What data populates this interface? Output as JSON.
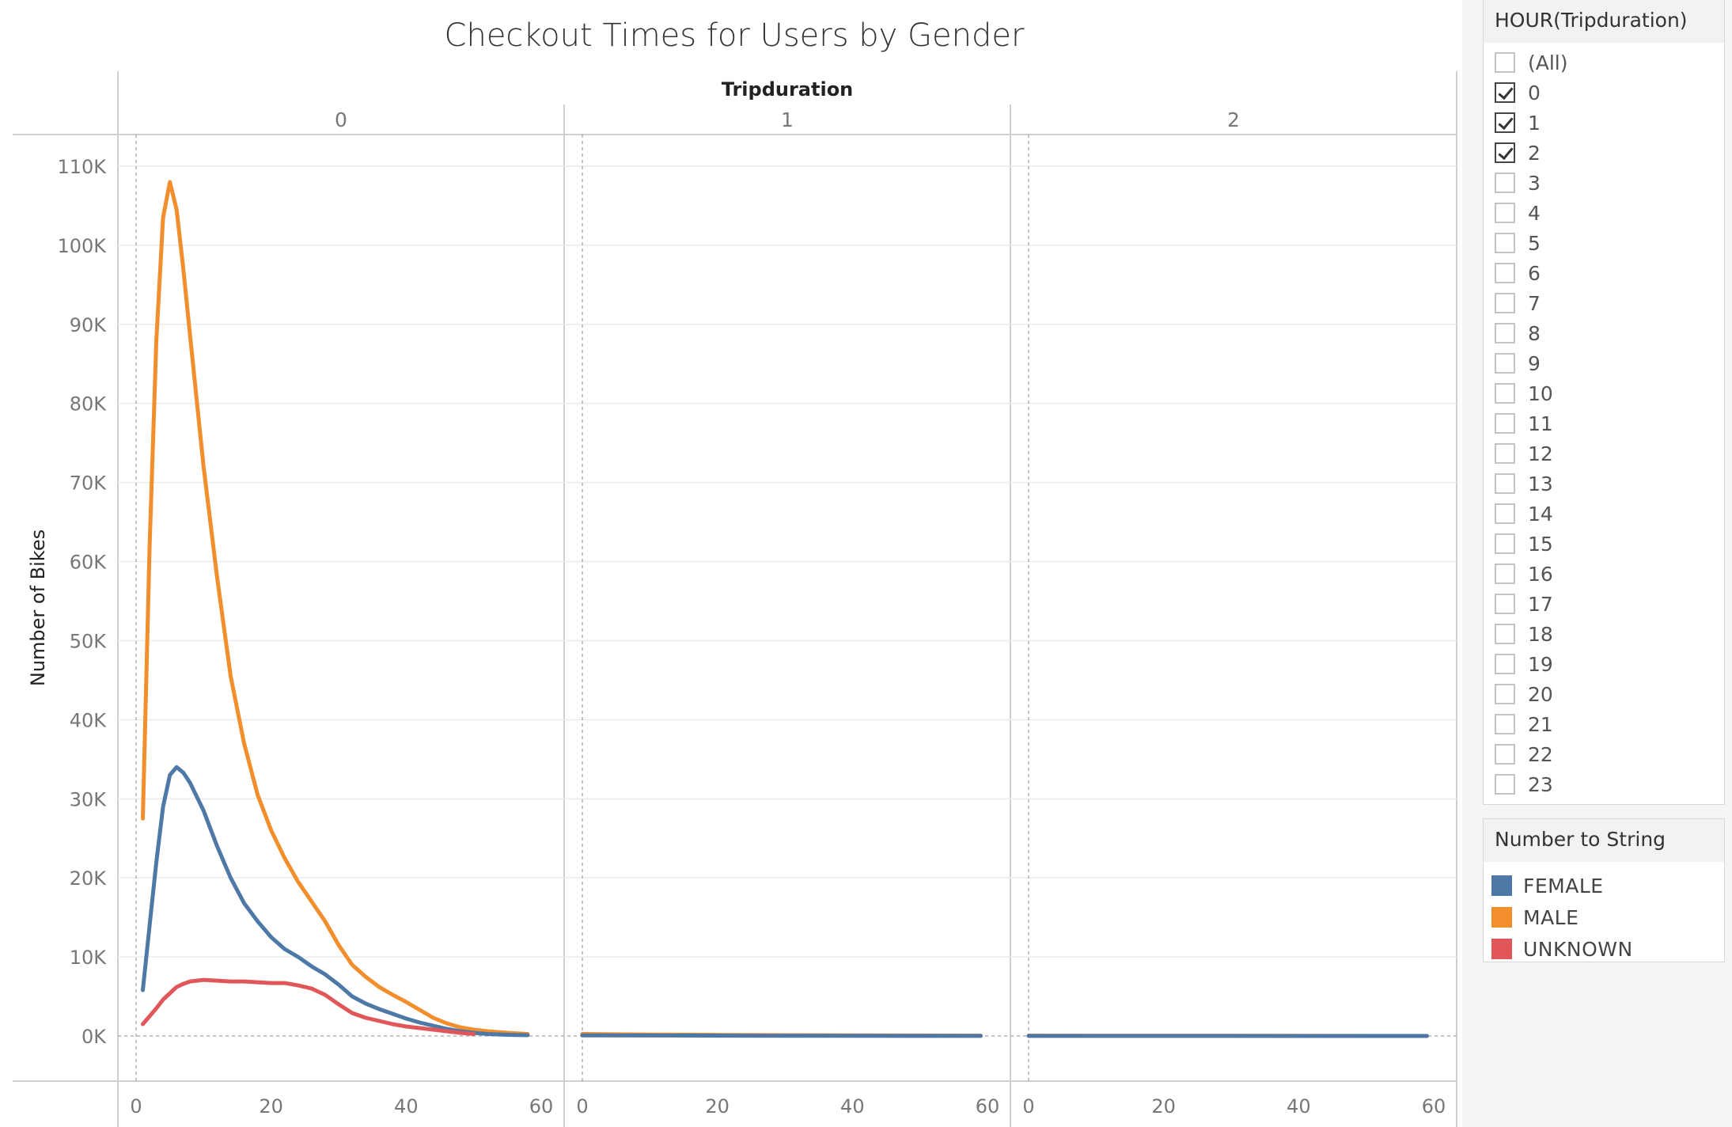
{
  "colors": {
    "female": "#4e79a7",
    "male": "#f28e2b",
    "unknown": "#e15759",
    "grid": "#ececec",
    "frame": "#cfcfcf"
  },
  "filter": {
    "title": "HOUR(Tripduration)",
    "items": [
      {
        "label": "(All)",
        "checked": false
      },
      {
        "label": "0",
        "checked": true
      },
      {
        "label": "1",
        "checked": true
      },
      {
        "label": "2",
        "checked": true
      },
      {
        "label": "3",
        "checked": false
      },
      {
        "label": "4",
        "checked": false
      },
      {
        "label": "5",
        "checked": false
      },
      {
        "label": "6",
        "checked": false
      },
      {
        "label": "7",
        "checked": false
      },
      {
        "label": "8",
        "checked": false
      },
      {
        "label": "9",
        "checked": false
      },
      {
        "label": "10",
        "checked": false
      },
      {
        "label": "11",
        "checked": false
      },
      {
        "label": "12",
        "checked": false
      },
      {
        "label": "13",
        "checked": false
      },
      {
        "label": "14",
        "checked": false
      },
      {
        "label": "15",
        "checked": false
      },
      {
        "label": "16",
        "checked": false
      },
      {
        "label": "17",
        "checked": false
      },
      {
        "label": "18",
        "checked": false
      },
      {
        "label": "19",
        "checked": false
      },
      {
        "label": "20",
        "checked": false
      },
      {
        "label": "21",
        "checked": false
      },
      {
        "label": "22",
        "checked": false
      },
      {
        "label": "23",
        "checked": false
      }
    ]
  },
  "legend": {
    "title": "Number to String",
    "items": [
      {
        "label": "FEMALE",
        "color": "#4e79a7"
      },
      {
        "label": "MALE",
        "color": "#f28e2b"
      },
      {
        "label": "UNKNOWN",
        "color": "#e15759"
      }
    ]
  },
  "chart_data": {
    "type": "line",
    "title": "Checkout Times for Users by Gender",
    "facet_label": "Tripduration",
    "facets": [
      "0",
      "1",
      "2"
    ],
    "ylabel": "Number of Bikes",
    "xlabel": "",
    "ylim": [
      0,
      112000
    ],
    "y_ticks": [
      0,
      10000,
      20000,
      30000,
      40000,
      50000,
      60000,
      70000,
      80000,
      90000,
      100000,
      110000
    ],
    "y_tick_labels": [
      "0K",
      "10K",
      "20K",
      "30K",
      "40K",
      "50K",
      "60K",
      "70K",
      "80K",
      "90K",
      "100K",
      "110K"
    ],
    "xlim": [
      -2,
      62
    ],
    "x_ticks": [
      0,
      20,
      40,
      60
    ],
    "x_tick_labels": [
      "0",
      "20",
      "40",
      "60"
    ],
    "grid": true,
    "legend_position": "right",
    "panels": [
      {
        "facet": "0",
        "series": [
          {
            "name": "MALE",
            "x": [
              1,
              2,
              3,
              4,
              5,
              6,
              7,
              8,
              10,
              12,
              14,
              16,
              18,
              20,
              22,
              24,
              26,
              28,
              30,
              32,
              34,
              36,
              38,
              40,
              42,
              44,
              46,
              48,
              50,
              52,
              55,
              58
            ],
            "y": [
              27500,
              62000,
              88000,
              103500,
              108000,
              104500,
              97000,
              88500,
              72000,
              58000,
              45500,
              37000,
              30500,
              26000,
              22500,
              19500,
              17000,
              14500,
              11500,
              9000,
              7500,
              6200,
              5200,
              4300,
              3300,
              2300,
              1600,
              1100,
              800,
              600,
              400,
              250
            ]
          },
          {
            "name": "FEMALE",
            "x": [
              1,
              2,
              3,
              4,
              5,
              6,
              7,
              8,
              10,
              12,
              14,
              16,
              18,
              20,
              22,
              24,
              26,
              28,
              30,
              32,
              34,
              36,
              38,
              40,
              42,
              44,
              46,
              48,
              50,
              52,
              55,
              58
            ],
            "y": [
              5800,
              14000,
              22000,
              29000,
              33000,
              34000,
              33300,
              32000,
              28500,
              24000,
              20000,
              16800,
              14500,
              12500,
              11000,
              10000,
              8800,
              7800,
              6500,
              5000,
              4100,
              3400,
              2800,
              2200,
              1700,
              1300,
              900,
              600,
              400,
              250,
              150,
              100
            ]
          },
          {
            "name": "UNKNOWN",
            "x": [
              1,
              2,
              3,
              4,
              5,
              6,
              7,
              8,
              10,
              12,
              14,
              16,
              18,
              20,
              22,
              24,
              26,
              28,
              30,
              32,
              34,
              36,
              38,
              40,
              42,
              44,
              46,
              48,
              50
            ],
            "y": [
              1500,
              2500,
              3500,
              4600,
              5400,
              6200,
              6600,
              6900,
              7100,
              7000,
              6900,
              6900,
              6800,
              6700,
              6700,
              6400,
              6000,
              5200,
              4000,
              2900,
              2300,
              1900,
              1500,
              1200,
              1000,
              800,
              600,
              400,
              250
            ]
          }
        ]
      },
      {
        "facet": "1",
        "series": [
          {
            "name": "MALE",
            "x": [
              0,
              10,
              20,
              30,
              40,
              50,
              59
            ],
            "y": [
              250,
              180,
              140,
              100,
              80,
              60,
              40
            ]
          },
          {
            "name": "FEMALE",
            "x": [
              0,
              10,
              20,
              30,
              40,
              50,
              59
            ],
            "y": [
              80,
              60,
              40,
              30,
              20,
              15,
              10
            ]
          }
        ]
      },
      {
        "facet": "2",
        "series": [
          {
            "name": "MALE",
            "x": [
              0,
              10,
              20,
              30,
              40,
              50,
              59
            ],
            "y": [
              40,
              35,
              30,
              25,
              20,
              15,
              10
            ]
          },
          {
            "name": "FEMALE",
            "x": [
              0,
              10,
              20,
              30,
              40,
              50,
              59
            ],
            "y": [
              10,
              10,
              8,
              6,
              5,
              4,
              3
            ]
          }
        ]
      }
    ]
  }
}
